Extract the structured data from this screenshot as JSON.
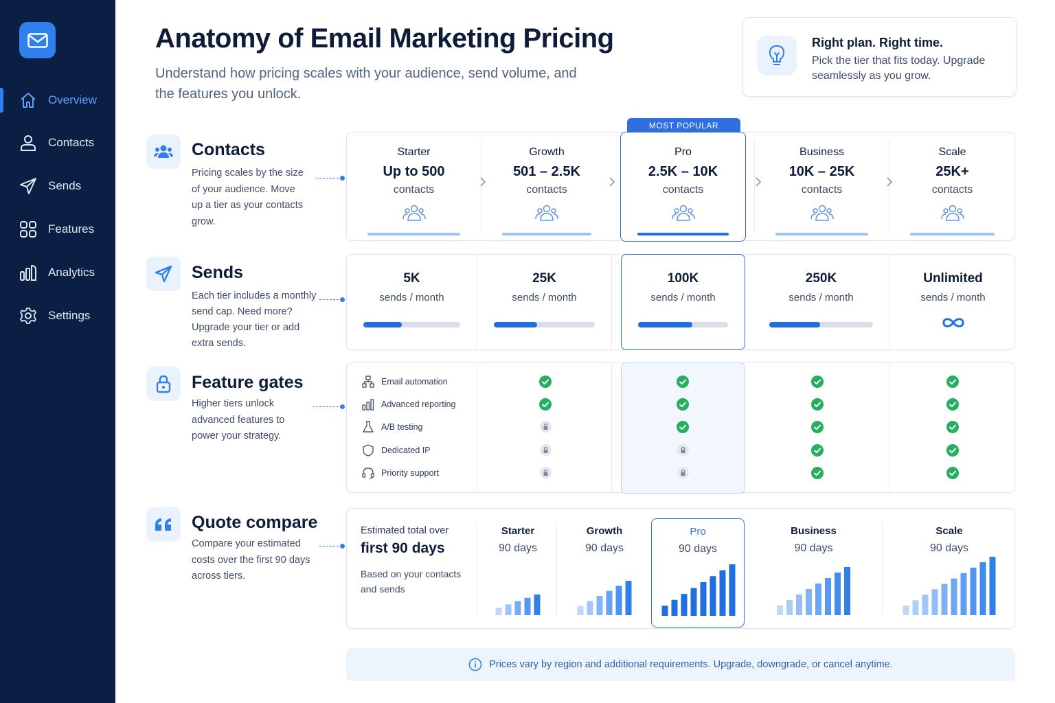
{
  "nav": {
    "items": [
      {
        "label": "Overview",
        "icon": "home-icon",
        "active": true
      },
      {
        "label": "Contacts",
        "icon": "user-icon"
      },
      {
        "label": "Sends",
        "icon": "send-icon"
      },
      {
        "label": "Features",
        "icon": "grid-icon"
      },
      {
        "label": "Analytics",
        "icon": "analytics-icon"
      },
      {
        "label": "Settings",
        "icon": "gear-icon"
      }
    ]
  },
  "header": {
    "title": "Anatomy of Email Marketing Pricing",
    "subtitle": "Understand how pricing scales with your audience, send volume, and the features you unlock."
  },
  "tip": {
    "title": "Right plan. Right time.",
    "text": "Pick the tier that fits today. Upgrade seamlessly as you grow."
  },
  "badge": "MOST POPULAR",
  "sections": {
    "contacts": {
      "title": "Contacts",
      "desc": "Pricing scales by the size of your audience. Move up a tier as your contacts grow."
    },
    "sends": {
      "title": "Sends",
      "desc": "Each tier includes a monthly send cap. Need more? Upgrade your tier or add extra sends."
    },
    "features": {
      "title": "Feature gates",
      "desc": "Higher tiers unlock advanced features to power your strategy."
    },
    "quote": {
      "title": "Quote compare",
      "desc": "Compare your estimated costs over the first 90 days across tiers."
    }
  },
  "tiers": [
    {
      "name": "Starter",
      "range": "Up to 500",
      "unit": "contacts"
    },
    {
      "name": "Growth",
      "range": "501 – 2.5K",
      "unit": "contacts"
    },
    {
      "name": "Pro",
      "range": "2.5K – 10K",
      "unit": "contacts"
    },
    {
      "name": "Business",
      "range": "10K – 25K",
      "unit": "contacts"
    },
    {
      "name": "Scale",
      "range": "25K+",
      "unit": "contacts"
    }
  ],
  "sends": [
    {
      "value": "5K",
      "unit": "sends / month",
      "fill": 0.4
    },
    {
      "value": "25K",
      "unit": "sends / month",
      "fill": 0.43
    },
    {
      "value": "100K",
      "unit": "sends / month",
      "fill": 0.6
    },
    {
      "value": "250K",
      "unit": "sends / month",
      "fill": 0.49
    },
    {
      "value": "Unlimited",
      "unit": "sends / month",
      "icon": "infinity-icon"
    }
  ],
  "features": [
    {
      "label": "Email automation",
      "icon": "workflow-icon",
      "access": [
        "yes",
        "yes",
        "yes",
        "yes"
      ]
    },
    {
      "label": "Advanced reporting",
      "icon": "bar-chart-icon",
      "access": [
        "yes",
        "yes",
        "yes",
        "yes"
      ]
    },
    {
      "label": "A/B testing",
      "icon": "flask-icon",
      "access": [
        "lock",
        "yes",
        "yes",
        "yes"
      ]
    },
    {
      "label": "Dedicated IP",
      "icon": "shield-icon",
      "access": [
        "lock",
        "lock",
        "yes",
        "yes"
      ]
    },
    {
      "label": "Priority support",
      "icon": "headset-icon",
      "access": [
        "lock",
        "lock",
        "yes",
        "yes"
      ]
    }
  ],
  "quote": {
    "line1": "Estimated total over",
    "line2": "first 90 days",
    "line3": "Based on your contacts and sends",
    "columns": [
      {
        "name": "Starter",
        "period": "90 days",
        "bars": [
          1,
          2,
          3,
          4,
          5
        ]
      },
      {
        "name": "Growth",
        "period": "90 days",
        "bars": [
          1,
          2,
          3,
          4,
          5,
          6
        ]
      },
      {
        "name": "Pro",
        "period": "90 days",
        "bars": [
          1,
          2,
          3,
          4,
          5,
          6,
          7,
          8
        ]
      },
      {
        "name": "Business",
        "period": "90 days",
        "bars": [
          1,
          2,
          3,
          4,
          5,
          6,
          7,
          8
        ]
      },
      {
        "name": "Scale",
        "period": "90 days",
        "bars": [
          1,
          2,
          3,
          4,
          5,
          6,
          7,
          8,
          9,
          10
        ]
      }
    ]
  },
  "footer": "Prices vary by region and additional requirements. Upgrade, downgrade, or cancel anytime.",
  "colors": {
    "accent": "#2f80ed",
    "sidebar": "#0b1f44",
    "check": "#27ae60",
    "highlight": "#2f6fdf"
  }
}
